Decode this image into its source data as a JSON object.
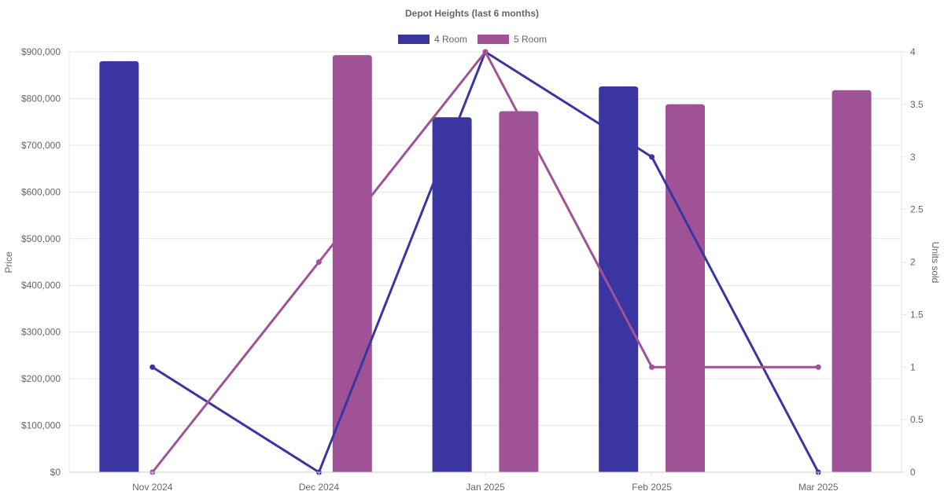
{
  "chart_data": {
    "type": "bar",
    "title": "Depot Heights (last 6 months)",
    "categories": [
      "Nov 2024",
      "Dec 2024",
      "Jan 2025",
      "Feb 2025",
      "Mar 2025"
    ],
    "legend": {
      "position": "top",
      "items": [
        "4 Room",
        "5 Room"
      ]
    },
    "series": [
      {
        "name": "4 Room",
        "type": "bar",
        "axis": "left",
        "color": "#3A35A0",
        "values": [
          880000,
          null,
          760000,
          826000,
          null
        ]
      },
      {
        "name": "5 Room",
        "type": "bar",
        "axis": "left",
        "color": "#A05296",
        "values": [
          null,
          893000,
          773000,
          788000,
          818000
        ]
      },
      {
        "name": "4 Room",
        "type": "line",
        "axis": "right",
        "color": "#3A35A0",
        "values": [
          1,
          0,
          4,
          3,
          0
        ]
      },
      {
        "name": "5 Room",
        "type": "line",
        "axis": "right",
        "color": "#A05296",
        "values": [
          0,
          2,
          4,
          1,
          1
        ]
      }
    ],
    "y_left": {
      "label": "Price",
      "range": [
        0,
        900000
      ],
      "ticks": [
        "$0",
        "$100,000",
        "$200,000",
        "$300,000",
        "$400,000",
        "$500,000",
        "$600,000",
        "$700,000",
        "$800,000",
        "$900,000"
      ]
    },
    "y_right": {
      "label": "Units sold",
      "range": [
        0,
        4
      ],
      "ticks": [
        "0",
        "0.5",
        "1",
        "1.5",
        "2",
        "2.5",
        "3",
        "3.5",
        "4"
      ]
    },
    "grid": true
  }
}
